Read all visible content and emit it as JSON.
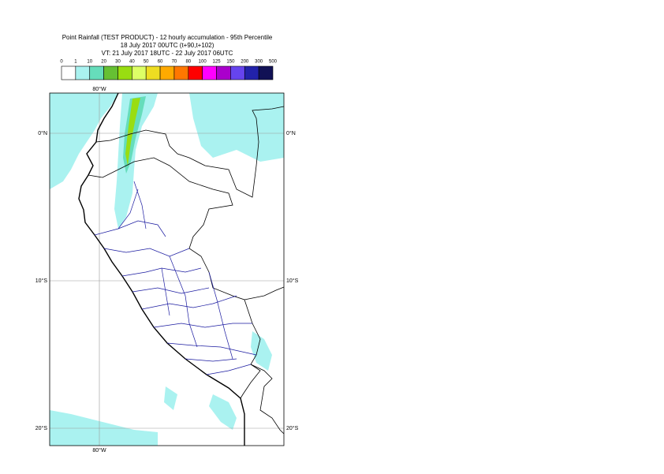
{
  "header": {
    "title": [
      "Point Rainfall (TEST PRODUCT) - 12 hourly accumulation - 95th Percentile",
      "18 July 2017 00UTC (t+90,t+102)",
      "VT: 21 July 2017 18UTC - 22 July 2017 06UTC"
    ]
  },
  "legend": {
    "bounds": [
      0,
      1,
      10,
      20,
      30,
      40,
      50,
      60,
      70,
      80,
      100,
      125,
      150,
      200,
      300,
      500
    ],
    "colors": [
      "#ffffff",
      "#aaf2f0",
      "#66ddbb",
      "#66c033",
      "#99dd11",
      "#ddff66",
      "#eedd22",
      "#ffaa00",
      "#ff7700",
      "#ff0000",
      "#ff00ff",
      "#aa00cc",
      "#6644ee",
      "#2222aa",
      "#111155"
    ]
  },
  "map": {
    "lon_labels": [
      "80°W"
    ],
    "lat_labels": [
      "0°N",
      "10°S",
      "20°S"
    ]
  }
}
